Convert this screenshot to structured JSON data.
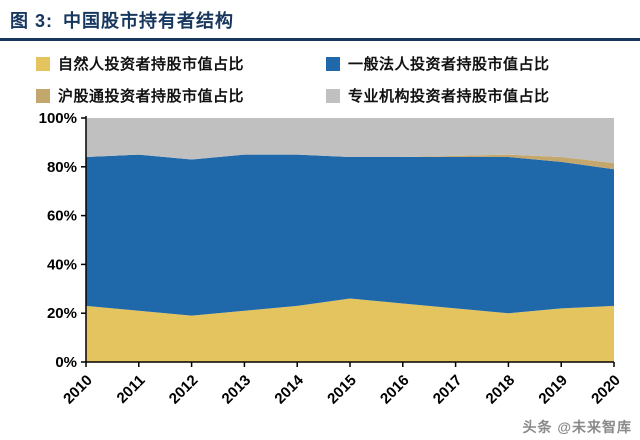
{
  "header": {
    "prefix": "图 3:",
    "title": "中国股市持有者结构",
    "accent_color": "#17375E"
  },
  "legend": {
    "items": [
      {
        "label": "自然人投资者持股市值占比",
        "color": "#E4C45F"
      },
      {
        "label": "一般法人投资者持股市值占比",
        "color": "#1F68A9"
      },
      {
        "label": "沪股通投资者持股市值占比",
        "color": "#C3A76C"
      },
      {
        "label": "专业机构投资者持股市值占比",
        "color": "#C0C0C0"
      }
    ]
  },
  "watermark": {
    "text": "头条 @未来智库"
  },
  "chart_data": {
    "type": "area",
    "stacked": true,
    "title": "中国股市持有者结构",
    "x": [
      "2010",
      "2011",
      "2012",
      "2013",
      "2014",
      "2015",
      "2016",
      "2017",
      "2018",
      "2019",
      "2020"
    ],
    "series": [
      {
        "name": "自然人投资者持股市值占比",
        "color": "#E4C45F",
        "values": [
          23,
          21,
          19,
          21,
          23,
          26,
          24,
          22,
          20,
          22,
          23
        ]
      },
      {
        "name": "一般法人投资者持股市值占比",
        "color": "#1F68A9",
        "values": [
          61,
          64,
          64,
          64,
          62,
          58,
          60,
          62,
          64,
          60,
          56
        ]
      },
      {
        "name": "沪股通投资者持股市值占比",
        "color": "#C3A76C",
        "values": [
          0,
          0,
          0,
          0,
          0,
          0,
          0,
          0.5,
          1,
          2,
          2.5
        ]
      },
      {
        "name": "专业机构投资者持股市值占比",
        "color": "#C0C0C0",
        "values": [
          16,
          15,
          17,
          15,
          15,
          16,
          16,
          15.5,
          15,
          16,
          18.5
        ]
      }
    ],
    "xlabel": "",
    "ylabel": "",
    "ylim": [
      0,
      100
    ],
    "yticks": [
      "0%",
      "20%",
      "40%",
      "60%",
      "80%",
      "100%"
    ],
    "grid": false,
    "legend_position": "top"
  }
}
